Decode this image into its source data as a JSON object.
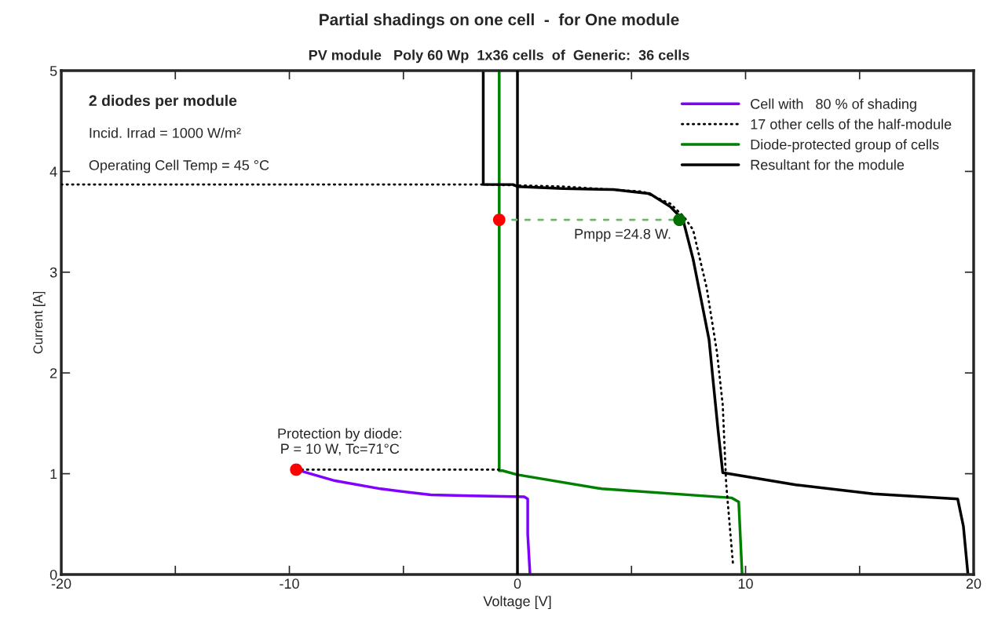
{
  "chart_data": {
    "type": "line",
    "title": "Partial shadings on one cell  -  for One module",
    "subtitle": "PV module   Poly 60 Wp  1x36 cells  of  Generic:  36 cells",
    "xlabel": "Voltage [V]",
    "ylabel": "Current [A]",
    "xlim": [
      -20,
      20
    ],
    "ylim": [
      0,
      5
    ],
    "xticks": [
      -20,
      {
        "value": -15,
        "label": null
      },
      -10,
      {
        "value": -5,
        "label": null
      },
      0,
      {
        "value": 5,
        "label": null
      },
      10,
      {
        "value": 15,
        "label": null
      },
      20
    ],
    "yticks": [
      0,
      1,
      2,
      3,
      4,
      5
    ],
    "grid": false,
    "legend": "top right",
    "series": [
      {
        "name": "Cell with   80 % of shading",
        "line_style": "solid",
        "color": "#8000ff",
        "x": [
          -9.7,
          -8,
          -6,
          -3.8,
          -2,
          0.3,
          0.45,
          0.45,
          0.55
        ],
        "values": [
          1.04,
          0.93,
          0.85,
          0.79,
          0.78,
          0.77,
          0.75,
          0.4,
          0
        ]
      },
      {
        "name": "17 other cells of the half-module",
        "line_style": "dotted",
        "color": "#000000",
        "x": [
          -20,
          -1.5,
          2,
          5.5,
          6.7,
          7.3,
          7.7,
          8.3,
          8.75,
          9.0,
          9.15,
          9.45
        ],
        "values": [
          3.87,
          3.87,
          3.85,
          3.8,
          3.68,
          3.55,
          3.42,
          2.84,
          2.2,
          1.68,
          0.9,
          0.1
        ]
      },
      {
        "name": "Diode-protected group of cells",
        "line_style": "solid",
        "color": "#008000",
        "x": [
          -0.8,
          -0.8,
          -0.65,
          0,
          3.7,
          9.4,
          9.7,
          9.85
        ],
        "values": [
          5,
          1.03,
          1.03,
          0.99,
          0.85,
          0.76,
          0.72,
          0
        ]
      },
      {
        "name": "Resultant for the module",
        "line_style": "solid",
        "color": "#000000",
        "x": [
          -1.5,
          -1.5,
          -0.2,
          0,
          2,
          4.2,
          5.8,
          6.7,
          7.26,
          7.7,
          8.06,
          8.4,
          8.57,
          8.8,
          9.0,
          12.2,
          15.6,
          19.3,
          19.55,
          19.75
        ],
        "values": [
          5,
          3.87,
          3.87,
          3.85,
          3.83,
          3.82,
          3.78,
          3.65,
          3.52,
          3.13,
          2.72,
          2.33,
          1.94,
          1.42,
          1.01,
          0.89,
          0.8,
          0.75,
          0.48,
          0
        ]
      },
      {
        "line_style": "dotted",
        "color": "#000000",
        "x": [
          -9.7,
          -0.8
        ],
        "values": [
          1.04,
          1.04
        ]
      },
      {
        "line_style": "dashed",
        "color": "#66bb66",
        "x": [
          -0.8,
          7.1
        ],
        "values": [
          3.52,
          3.52
        ]
      },
      {
        "type": "scatter",
        "marker": "circle",
        "colors": [
          "#ff0000",
          "#ff0000",
          "#007000"
        ],
        "x": [
          -9.7,
          -0.8,
          7.1
        ],
        "values": [
          1.04,
          3.52,
          3.52
        ]
      }
    ],
    "ref_lines": [
      {
        "axis": "x",
        "value": 0,
        "color": "#000000"
      }
    ],
    "annotations": [
      "2 diodes per module",
      "Incid. Irrad = 1000 W/m²",
      "Operating Cell Temp = 45 °C",
      {
        "text": "Protection by diode:\nP = 10 W, Tc=71°C",
        "x": -9.7,
        "y": 1.04
      },
      {
        "text": "Pmpp =24.8 W.",
        "x": 7.1,
        "y": 3.52
      }
    ]
  }
}
